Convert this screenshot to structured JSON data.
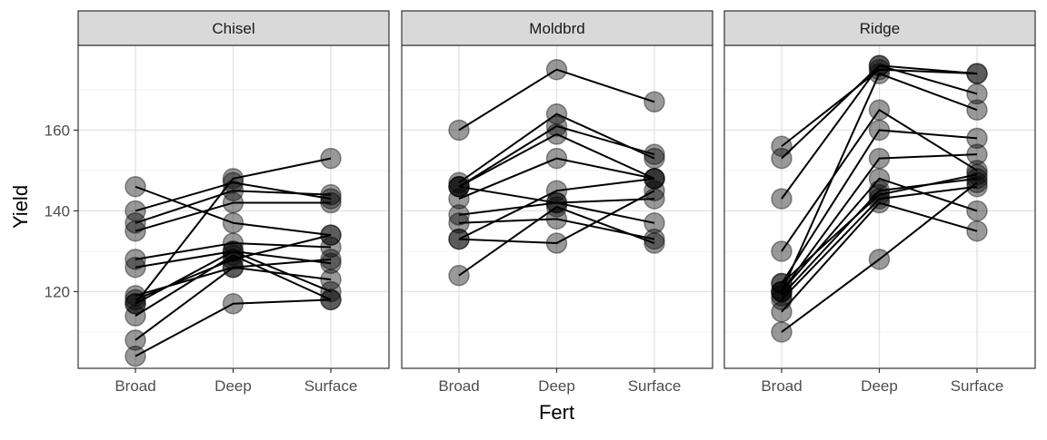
{
  "chart_data": {
    "type": "scatter",
    "facet_variable": "Tillage",
    "xlabel": "Fert",
    "ylabel": "Yield",
    "x_categories": [
      "Broad",
      "Deep",
      "Surface"
    ],
    "ylim": [
      101,
      181
    ],
    "y_ticks": [
      120,
      140,
      160
    ],
    "grid": true,
    "point_style": {
      "color": "#000000",
      "alpha": 0.4
    },
    "line_color": "#000000",
    "facets": [
      {
        "name": "Chisel",
        "blocks": [
          [
            146,
            137,
            134
          ],
          [
            140,
            147,
            143
          ],
          [
            137,
            145,
            144
          ],
          [
            135,
            142,
            142
          ],
          [
            128,
            132,
            131
          ],
          [
            126,
            130,
            127
          ],
          [
            119,
            126,
            123
          ],
          [
            118,
            128,
            134
          ],
          [
            117,
            130,
            120
          ],
          [
            114,
            129,
            118
          ],
          [
            108,
            126,
            128
          ],
          [
            104,
            117,
            118
          ],
          [
            117,
            148,
            153
          ]
        ]
      },
      {
        "name": "Moldbrd",
        "blocks": [
          [
            160,
            175,
            167
          ],
          [
            147,
            164,
            153
          ],
          [
            146,
            161,
            154
          ],
          [
            146,
            159,
            148
          ],
          [
            143,
            153,
            148
          ],
          [
            139,
            142,
            143
          ],
          [
            137,
            138,
            133
          ],
          [
            133,
            145,
            148
          ],
          [
            133,
            132,
            145
          ],
          [
            124,
            141,
            132
          ],
          [
            146,
            142,
            137
          ]
        ]
      },
      {
        "name": "Ridge",
        "blocks": [
          [
            156,
            175,
            174
          ],
          [
            153,
            176,
            169
          ],
          [
            143,
            176,
            174
          ],
          [
            130,
            165,
            150
          ],
          [
            122,
            160,
            158
          ],
          [
            120,
            153,
            154
          ],
          [
            120,
            148,
            140
          ],
          [
            119,
            145,
            148
          ],
          [
            118,
            143,
            146
          ],
          [
            115,
            142,
            135
          ],
          [
            110,
            128,
            147
          ],
          [
            120,
            174,
            165
          ],
          [
            122,
            144,
            149
          ]
        ]
      }
    ]
  }
}
